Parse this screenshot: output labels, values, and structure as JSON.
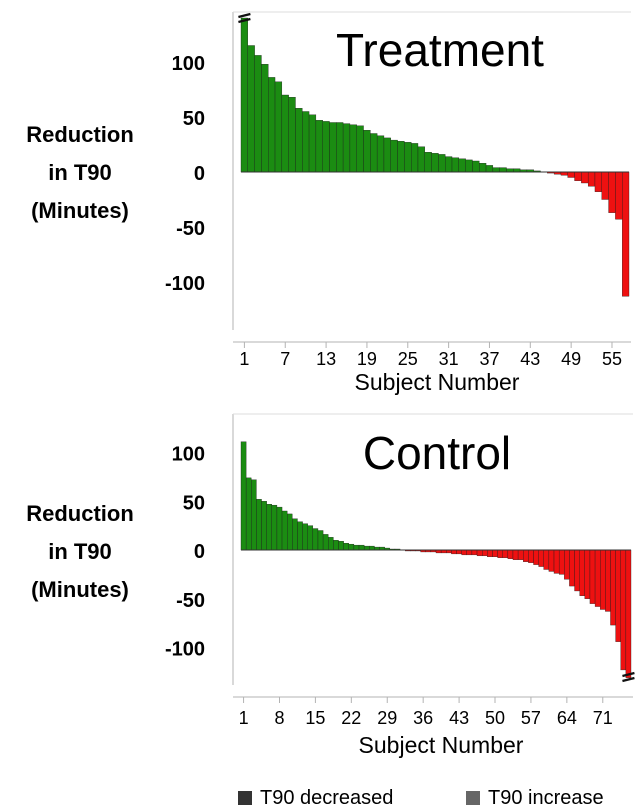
{
  "chart_data": [
    {
      "type": "bar",
      "title": "Treatment",
      "ylabel": [
        "Reduction",
        "in T90",
        "(Minutes)"
      ],
      "xlabel": "Subject Number",
      "x_ticks": [
        "1",
        "7",
        "13",
        "19",
        "25",
        "31",
        "37",
        "43",
        "49",
        "55"
      ],
      "y_ticks": [
        "100",
        "50",
        "0",
        "-50",
        "-100"
      ],
      "ylim": [
        -140,
        140
      ],
      "axis_break_first_bar": true,
      "series": [
        {
          "values": [
            140,
            115,
            106,
            98,
            86,
            82,
            70,
            68,
            58,
            55,
            52,
            47,
            46,
            45,
            45,
            44,
            43,
            42,
            38,
            35,
            33,
            31,
            29,
            28,
            27,
            26,
            23,
            18,
            17,
            16,
            14,
            13,
            12,
            11,
            10,
            8,
            6,
            4,
            4,
            3,
            3,
            2,
            2,
            1,
            0,
            -1,
            -2,
            -3,
            -5,
            -8,
            -10,
            -13,
            -18,
            -25,
            -37,
            -43,
            -113
          ]
        }
      ]
    },
    {
      "type": "bar",
      "title": "Control",
      "ylabel": [
        "Reduction",
        "in T90",
        "(Minutes)"
      ],
      "xlabel": "Subject Number",
      "x_ticks": [
        "1",
        "8",
        "15",
        "22",
        "29",
        "36",
        "43",
        "50",
        "57",
        "64",
        "71"
      ],
      "y_ticks": [
        "100",
        "50",
        "0",
        "-50",
        "-100"
      ],
      "ylim": [
        -135,
        140
      ],
      "axis_break_last_bar": true,
      "series": [
        {
          "values": [
            111,
            74,
            72,
            52,
            50,
            47,
            46,
            44,
            40,
            37,
            32,
            29,
            27,
            25,
            22,
            20,
            16,
            13,
            10,
            9,
            7,
            6,
            5,
            5,
            4,
            4,
            3,
            3,
            2,
            1,
            1,
            0,
            -1,
            -1,
            -1,
            -2,
            -2,
            -2,
            -3,
            -3,
            -3,
            -4,
            -4,
            -5,
            -5,
            -5,
            -6,
            -6,
            -7,
            -7,
            -8,
            -8,
            -9,
            -10,
            -10,
            -12,
            -13,
            -15,
            -17,
            -20,
            -22,
            -24,
            -25,
            -30,
            -37,
            -42,
            -47,
            -50,
            -55,
            -58,
            -61,
            -63,
            -77,
            -94,
            -123,
            -131
          ]
        }
      ]
    }
  ],
  "colors": {
    "decreased": "#1b8c12",
    "increased": "#ee1111",
    "axis": "#b3b3b3"
  },
  "legend": [
    {
      "label": "T90 decreased",
      "swatch": "#333333"
    },
    {
      "label": "T90 increase",
      "swatch": "#666666"
    }
  ]
}
